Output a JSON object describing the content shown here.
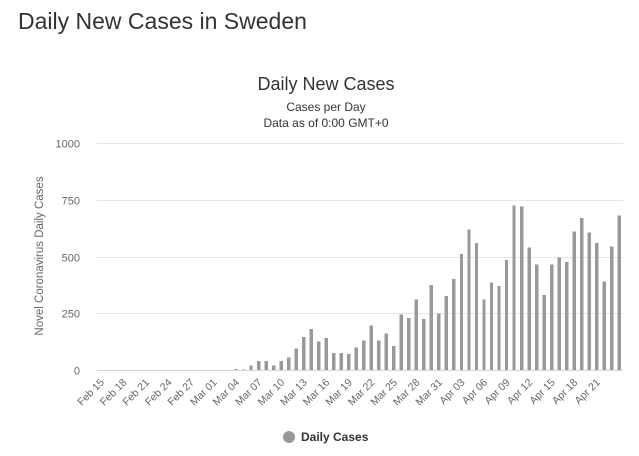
{
  "page": {
    "heading": "Daily New Cases in Sweden"
  },
  "colors": {
    "bar": "#999999",
    "legend_marker": "#999999"
  },
  "chart_data": {
    "type": "bar",
    "title": "Daily New Cases",
    "subtitle_line1": "Cases per Day",
    "subtitle_line2": "Data as of 0:00 GMT+0",
    "ylabel": "Novel Coronavirus Daily Cases",
    "xlabel": "",
    "ylim": [
      0,
      1000
    ],
    "yticks": [
      0,
      250,
      500,
      750,
      1000
    ],
    "xtick_labels": [
      "Feb 15",
      "Feb 18",
      "Feb 21",
      "Feb 24",
      "Feb 27",
      "Mar 01",
      "Mar 04",
      "Mar 07",
      "Mar 10",
      "Mar 13",
      "Mar 16",
      "Mar 19",
      "Mar 22",
      "Mar 25",
      "Mar 28",
      "Mar 31",
      "Apr 03",
      "Apr 06",
      "Apr 09",
      "Apr 12",
      "Apr 15",
      "Apr 18",
      "Apr 21"
    ],
    "tick_every": 3,
    "start_date": "Feb 15",
    "grid": true,
    "legend": {
      "label": "Daily Cases",
      "position": "bottom-center"
    },
    "series": [
      {
        "name": "Daily Cases",
        "values": [
          0,
          0,
          0,
          0,
          0,
          0,
          0,
          0,
          0,
          0,
          0,
          0,
          0,
          0,
          0,
          0,
          0,
          0,
          5,
          3,
          20,
          40,
          40,
          20,
          40,
          55,
          95,
          145,
          180,
          125,
          140,
          75,
          75,
          70,
          100,
          130,
          195,
          130,
          160,
          105,
          245,
          230,
          310,
          225,
          375,
          250,
          325,
          400,
          510,
          620,
          560,
          310,
          385,
          370,
          485,
          725,
          720,
          540,
          465,
          330,
          465,
          495,
          475,
          610,
          670,
          605,
          560,
          390,
          545,
          680
        ]
      }
    ]
  }
}
